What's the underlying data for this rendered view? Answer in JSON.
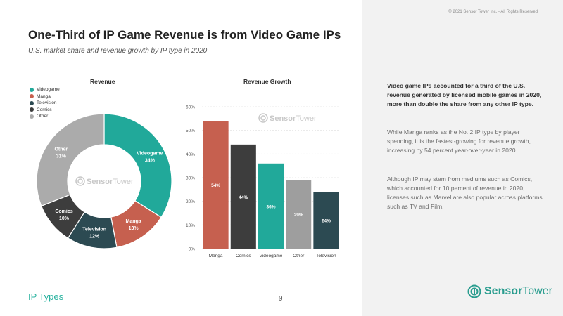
{
  "copyright": "© 2021 Sensor Tower Inc. - All Rights Reserved",
  "title": "One-Third of IP Game Revenue is from Video Game IPs",
  "subtitle": "U.S. market share and revenue growth by IP type in 2020",
  "panel": {
    "p1": "Video game IPs accounted for a third of the U.S. revenue generated by licensed mobile games in 2020, more than double the share from any other IP type.",
    "p2": "While Manga ranks as the No. 2 IP type by player spending, it is the fastest-growing for revenue growth, increasing by 54 percent year-over-year in 2020.",
    "p3": "Although IP may stem from mediums such as Comics, which accounted for 10 percent of revenue in 2020, licenses such as Marvel are also popular across platforms such as TV and Film."
  },
  "footer": {
    "section": "IP Types",
    "page": "9"
  },
  "brand": {
    "bold": "Sensor",
    "light": "Tower"
  },
  "colors": {
    "teal": "#21a99a",
    "red": "#c6604f",
    "navy": "#2c4a52",
    "dark": "#3d3d3d",
    "gray": "#9e9e9e"
  },
  "chart_data": [
    {
      "type": "pie",
      "title": "Revenue",
      "donut": true,
      "watermark": {
        "bold": "Sensor",
        "light": "Tower"
      },
      "slices": [
        {
          "label": "Videogame",
          "value": 34,
          "display": "34%",
          "color": "#21a99a"
        },
        {
          "label": "Manga",
          "value": 13,
          "display": "13%",
          "color": "#c6604f"
        },
        {
          "label": "Television",
          "value": 12,
          "display": "12%",
          "color": "#2c4a52"
        },
        {
          "label": "Comics",
          "value": 10,
          "display": "10%",
          "color": "#3d3d3d"
        },
        {
          "label": "Other",
          "value": 31,
          "display": "31%",
          "color": "#ababab"
        }
      ],
      "legend": [
        "Videogame",
        "Manga",
        "Television",
        "Comics",
        "Other"
      ],
      "legend_position": "top-left"
    },
    {
      "type": "bar",
      "title": "Revenue Growth",
      "watermark": {
        "bold": "Sensor",
        "light": "Tower"
      },
      "categories": [
        "Manga",
        "Comics",
        "Videogame",
        "Other",
        "Television"
      ],
      "values": [
        54,
        44,
        36,
        29,
        24
      ],
      "labels": [
        "54%",
        "44%",
        "36%",
        "29%",
        "24%"
      ],
      "colors": [
        "#c6604f",
        "#3d3d3d",
        "#21a99a",
        "#9e9e9e",
        "#2c4a52"
      ],
      "yticks": [
        "0%",
        "10%",
        "20%",
        "30%",
        "40%",
        "50%",
        "60%"
      ],
      "ylim": [
        0,
        60
      ]
    }
  ]
}
